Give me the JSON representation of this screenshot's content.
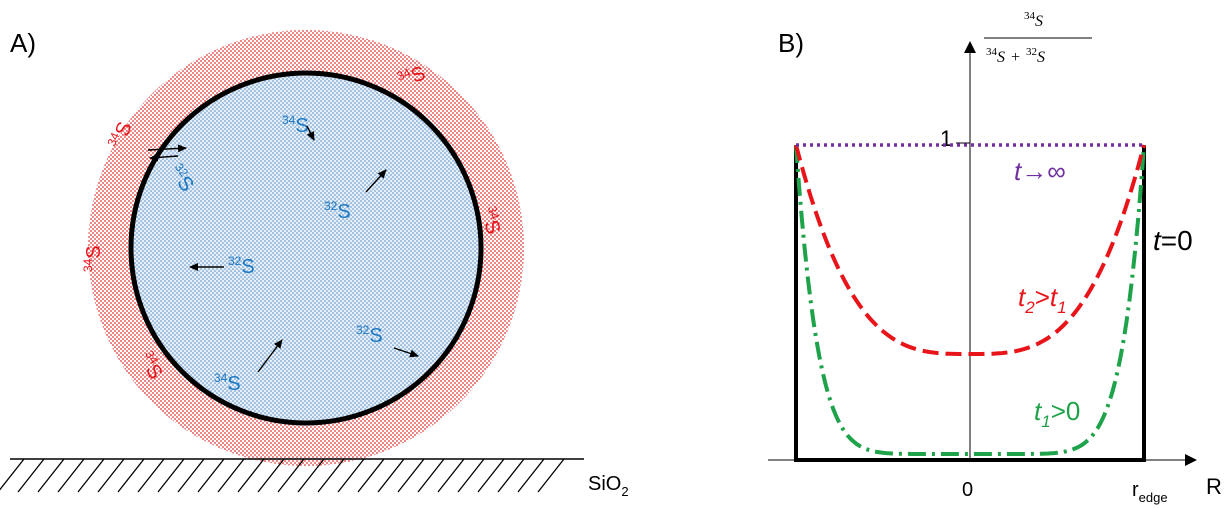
{
  "panel_a": {
    "label": "A)",
    "substrate_label": "SiO",
    "substrate_subscript": "2",
    "isotopes": {
      "heavy_mass": "34",
      "light_mass": "32",
      "element": "S"
    },
    "colors": {
      "shell_dots": "#e03030",
      "core_dots": "#4a86c5",
      "core_fill": "#dbe8f3",
      "shell_fill": "#fbe3e3",
      "outline": "#000000",
      "outer_label": "#e8141a",
      "inner_label": "#1b78c4"
    }
  },
  "panel_b": {
    "label": "B)",
    "y_axis_label": {
      "numerator": "34S",
      "denominator_left": "34S",
      "plus": "+",
      "denominator_right": "32S",
      "num_sup": "34",
      "num_base": "S",
      "den1_sup": "34",
      "den1_base": "S",
      "den2_sup": "32",
      "den2_base": "S"
    },
    "x_axis_label": "R",
    "tick_one": "1",
    "tick_zero": "0",
    "tick_edge_base": "r",
    "tick_edge_sub": "edge",
    "curves": [
      {
        "key": "t_inf",
        "label_t": "t",
        "label_rest": "→∞",
        "color": "#7030a0"
      },
      {
        "key": "t0",
        "label_t": "t",
        "label_rest": "=0",
        "color": "#000000"
      },
      {
        "key": "t2",
        "label_t": "t",
        "label_sub": "2",
        "label_mid": ">",
        "label_t2": "t",
        "label_sub2": "1",
        "color": "#e8141a"
      },
      {
        "key": "t1",
        "label_t": "t",
        "label_sub": "1",
        "label_rest": ">0",
        "color": "#1ea34a"
      }
    ]
  }
}
